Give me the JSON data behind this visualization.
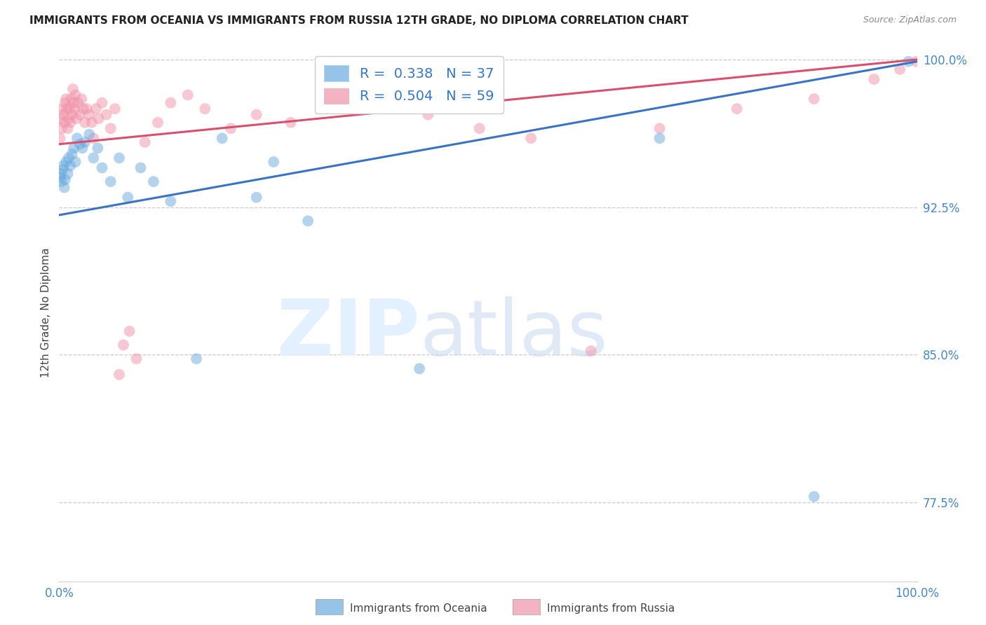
{
  "title": "IMMIGRANTS FROM OCEANIA VS IMMIGRANTS FROM RUSSIA 12TH GRADE, NO DIPLOMA CORRELATION CHART",
  "source": "Source: ZipAtlas.com",
  "ylabel": "12th Grade, No Diploma",
  "xlim": [
    0.0,
    1.0
  ],
  "ylim": [
    0.735,
    1.008
  ],
  "x_ticks": [
    0.0,
    0.2,
    0.4,
    0.6,
    0.8,
    1.0
  ],
  "x_tick_labels": [
    "0.0%",
    "",
    "",
    "",
    "",
    "100.0%"
  ],
  "y_ticks": [
    0.775,
    0.85,
    0.925,
    1.0
  ],
  "y_tick_labels": [
    "77.5%",
    "85.0%",
    "92.5%",
    "100.0%"
  ],
  "legend_labels": [
    "R =  0.338   N = 37",
    "R =  0.504   N = 59"
  ],
  "blue_color": "#6aabdf",
  "pink_color": "#f093a8",
  "blue_line_color": "#3a72c4",
  "pink_line_color": "#d94f6e",
  "oceania_x": [
    0.001,
    0.002,
    0.003,
    0.004,
    0.005,
    0.006,
    0.007,
    0.008,
    0.01,
    0.011,
    0.013,
    0.015,
    0.017,
    0.019,
    0.021,
    0.024,
    0.027,
    0.03,
    0.035,
    0.04,
    0.045,
    0.05,
    0.06,
    0.07,
    0.08,
    0.095,
    0.11,
    0.13,
    0.16,
    0.19,
    0.23,
    0.25,
    0.29,
    0.42,
    0.7,
    0.88,
    0.99
  ],
  "oceania_y": [
    0.94,
    0.942,
    0.938,
    0.944,
    0.946,
    0.935,
    0.939,
    0.948,
    0.942,
    0.95,
    0.946,
    0.952,
    0.955,
    0.948,
    0.96,
    0.957,
    0.955,
    0.958,
    0.962,
    0.95,
    0.955,
    0.945,
    0.938,
    0.95,
    0.93,
    0.945,
    0.938,
    0.928,
    0.848,
    0.96,
    0.93,
    0.948,
    0.918,
    0.843,
    0.96,
    0.778,
    0.999
  ],
  "russia_x": [
    0.001,
    0.002,
    0.003,
    0.004,
    0.005,
    0.006,
    0.007,
    0.008,
    0.009,
    0.01,
    0.011,
    0.012,
    0.013,
    0.014,
    0.015,
    0.016,
    0.017,
    0.018,
    0.019,
    0.02,
    0.022,
    0.024,
    0.026,
    0.028,
    0.03,
    0.032,
    0.035,
    0.038,
    0.04,
    0.043,
    0.046,
    0.05,
    0.055,
    0.06,
    0.065,
    0.07,
    0.075,
    0.082,
    0.09,
    0.1,
    0.115,
    0.13,
    0.15,
    0.17,
    0.2,
    0.23,
    0.27,
    0.32,
    0.38,
    0.43,
    0.49,
    0.55,
    0.62,
    0.7,
    0.79,
    0.88,
    0.95,
    0.98,
    0.999
  ],
  "russia_y": [
    0.96,
    0.97,
    0.965,
    0.975,
    0.972,
    0.968,
    0.978,
    0.98,
    0.975,
    0.965,
    0.97,
    0.975,
    0.968,
    0.98,
    0.972,
    0.985,
    0.978,
    0.975,
    0.982,
    0.97,
    0.978,
    0.972,
    0.98,
    0.975,
    0.968,
    0.975,
    0.972,
    0.968,
    0.96,
    0.975,
    0.97,
    0.978,
    0.972,
    0.965,
    0.975,
    0.84,
    0.855,
    0.862,
    0.848,
    0.958,
    0.968,
    0.978,
    0.982,
    0.975,
    0.965,
    0.972,
    0.968,
    0.975,
    0.98,
    0.972,
    0.965,
    0.96,
    0.852,
    0.965,
    0.975,
    0.98,
    0.99,
    0.995,
    0.999
  ],
  "blue_trendline_x": [
    0.0,
    1.0
  ],
  "blue_trendline_y": [
    0.921,
    0.999
  ],
  "pink_trendline_x": [
    0.0,
    1.0
  ],
  "pink_trendline_y": [
    0.957,
    1.0
  ]
}
